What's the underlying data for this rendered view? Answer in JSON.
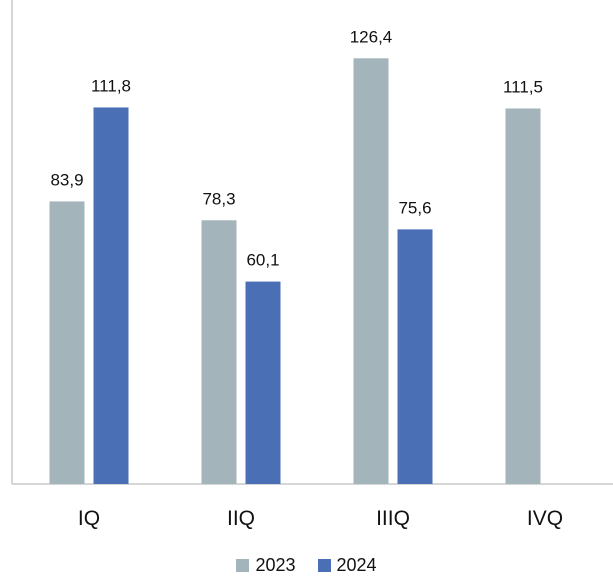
{
  "chart_data": {
    "type": "bar",
    "categories": [
      "IQ",
      "IIQ",
      "IIIQ",
      "IVQ"
    ],
    "series": [
      {
        "name": "2023",
        "values": [
          83.9,
          78.3,
          126.4,
          111.5
        ],
        "labels": [
          "83,9",
          "78,3",
          "126,4",
          "111,5"
        ],
        "color": "#A3B4BA"
      },
      {
        "name": "2024",
        "values": [
          111.8,
          60.1,
          75.6,
          null
        ],
        "labels": [
          "111,8",
          "60,1",
          "75,6",
          ""
        ],
        "color": "#4A6FB5"
      }
    ],
    "ylim": [
      0,
      135
    ],
    "grid": false,
    "legend_position": "bottom"
  }
}
